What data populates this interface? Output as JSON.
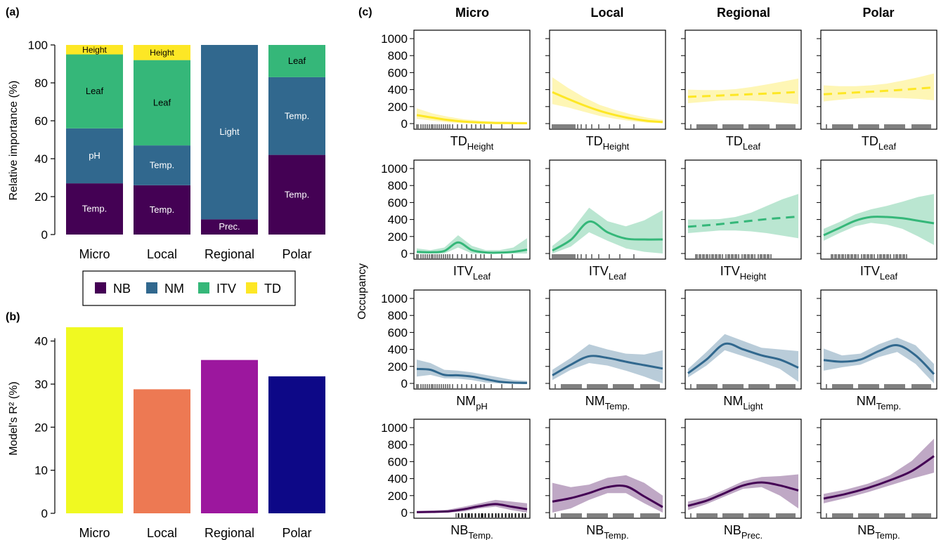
{
  "chart_data": [
    {
      "id": "a",
      "panel_label": "(a)",
      "type": "bar",
      "stacked": true,
      "ylabel": "Relative importance (%)",
      "ylim": [
        0,
        100
      ],
      "yticks": [
        0,
        20,
        40,
        60,
        80,
        100
      ],
      "categories": [
        "Micro",
        "Local",
        "Regional",
        "Polar"
      ],
      "colors": {
        "NB": "#440154",
        "NM": "#31688e",
        "ITV": "#35b779",
        "TD": "#fde725"
      },
      "segments": [
        [
          {
            "group": "NB",
            "value": 27,
            "label": "Temp."
          },
          {
            "group": "NM",
            "value": 29,
            "label": "pH"
          },
          {
            "group": "ITV",
            "value": 39,
            "label": "Leaf"
          },
          {
            "group": "TD",
            "value": 5,
            "label": "Height"
          }
        ],
        [
          {
            "group": "NB",
            "value": 26,
            "label": "Temp."
          },
          {
            "group": "NM",
            "value": 21,
            "label": "Temp."
          },
          {
            "group": "ITV",
            "value": 45,
            "label": "Leaf"
          },
          {
            "group": "TD",
            "value": 8,
            "label": "Height"
          }
        ],
        [
          {
            "group": "NB",
            "value": 8,
            "label": "Prec."
          },
          {
            "group": "NM",
            "value": 92,
            "label": "Light"
          }
        ],
        [
          {
            "group": "NB",
            "value": 42,
            "label": "Temp."
          },
          {
            "group": "NM",
            "value": 41,
            "label": "Temp."
          },
          {
            "group": "ITV",
            "value": 17,
            "label": "Leaf"
          }
        ]
      ],
      "legend": [
        "NB",
        "NM",
        "ITV",
        "TD"
      ]
    },
    {
      "id": "b",
      "panel_label": "(b)",
      "type": "bar",
      "ylabel": "Model's R² (%)",
      "ylim": [
        0,
        45
      ],
      "yticks": [
        0,
        10,
        20,
        30,
        40
      ],
      "categories": [
        "Micro",
        "Local",
        "Regional",
        "Polar"
      ],
      "values": [
        43.2,
        28.8,
        35.6,
        31.8
      ],
      "colors": [
        "#f0f921",
        "#ed7953",
        "#9c179e",
        "#0d0887"
      ]
    },
    {
      "id": "c",
      "panel_label": "(c)",
      "type": "line",
      "ylabel": "Occupancy",
      "ylim": [
        0,
        1000
      ],
      "yticks": [
        0,
        200,
        400,
        600,
        800,
        1000
      ],
      "columns": [
        "Micro",
        "Local",
        "Regional",
        "Polar"
      ],
      "panels": [
        {
          "row": 0,
          "col": 0,
          "main": "TD",
          "sub": "Height",
          "group": "TD",
          "dashed": false,
          "fit": [
            100,
            70,
            42,
            22,
            12,
            7,
            5,
            4
          ],
          "lo": [
            55,
            35,
            15,
            5,
            2,
            0,
            0,
            0
          ],
          "hi": [
            180,
            120,
            80,
            50,
            35,
            25,
            22,
            20
          ],
          "rug": "micro"
        },
        {
          "row": 0,
          "col": 1,
          "main": "TD",
          "sub": "Height",
          "group": "TD",
          "dashed": false,
          "fit": [
            370,
            290,
            215,
            150,
            100,
            60,
            32,
            18
          ],
          "lo": [
            230,
            190,
            140,
            90,
            55,
            30,
            10,
            5
          ],
          "hi": [
            545,
            420,
            310,
            220,
            160,
            110,
            70,
            45
          ],
          "rug": "left"
        },
        {
          "row": 0,
          "col": 2,
          "main": "TD",
          "sub": "Leaf",
          "group": "TD",
          "dashed": true,
          "fit": [
            315,
            322,
            330,
            338,
            346,
            354,
            362,
            372
          ],
          "lo": [
            240,
            255,
            270,
            275,
            270,
            260,
            245,
            230
          ],
          "hi": [
            400,
            395,
            395,
            405,
            430,
            460,
            495,
            530
          ],
          "rug": "wide"
        },
        {
          "row": 0,
          "col": 3,
          "main": "TD",
          "sub": "Leaf",
          "group": "TD",
          "dashed": true,
          "fit": [
            345,
            355,
            365,
            375,
            386,
            398,
            412,
            425
          ],
          "lo": [
            260,
            280,
            295,
            305,
            305,
            300,
            290,
            275
          ],
          "hi": [
            450,
            440,
            440,
            450,
            470,
            505,
            545,
            590
          ],
          "rug": "wide"
        },
        {
          "row": 1,
          "col": 0,
          "main": "ITV",
          "sub": "Leaf",
          "group": "ITV",
          "dashed": false,
          "fit": [
            20,
            15,
            30,
            130,
            40,
            12,
            10,
            20,
            45
          ],
          "lo": [
            0,
            0,
            0,
            70,
            0,
            0,
            0,
            0,
            0
          ],
          "hi": [
            60,
            40,
            70,
            215,
            90,
            40,
            40,
            70,
            180
          ],
          "rug": "micro"
        },
        {
          "row": 1,
          "col": 1,
          "main": "ITV",
          "sub": "Leaf",
          "group": "ITV",
          "dashed": false,
          "fit": [
            35,
            160,
            375,
            250,
            175,
            165,
            165
          ],
          "lo": [
            0,
            80,
            250,
            150,
            60,
            20,
            0
          ],
          "hi": [
            90,
            260,
            540,
            380,
            320,
            390,
            510
          ],
          "rug": "left"
        },
        {
          "row": 1,
          "col": 2,
          "main": "ITV",
          "sub": "Height",
          "group": "ITV",
          "dashed": true,
          "fit": [
            315,
            330,
            345,
            365,
            385,
            405,
            420,
            435
          ],
          "lo": [
            240,
            255,
            270,
            270,
            260,
            240,
            210,
            180
          ],
          "hi": [
            400,
            400,
            405,
            430,
            480,
            560,
            640,
            700
          ],
          "rug": "leftmid"
        },
        {
          "row": 1,
          "col": 3,
          "main": "ITV",
          "sub": "Leaf",
          "group": "ITV",
          "dashed": false,
          "fit": [
            215,
            300,
            385,
            430,
            430,
            415,
            385,
            355
          ],
          "lo": [
            150,
            240,
            320,
            360,
            340,
            290,
            200,
            100
          ],
          "hi": [
            290,
            370,
            460,
            520,
            560,
            610,
            665,
            700
          ],
          "rug": "leftmid"
        },
        {
          "row": 2,
          "col": 0,
          "main": "NM",
          "sub": "pH",
          "group": "NM",
          "dashed": false,
          "fit": [
            170,
            160,
            100,
            95,
            80,
            50,
            20,
            8,
            5
          ],
          "lo": [
            80,
            100,
            60,
            55,
            40,
            10,
            0,
            0,
            0
          ],
          "hi": [
            280,
            240,
            160,
            150,
            130,
            100,
            70,
            40,
            30
          ],
          "rug": "micro"
        },
        {
          "row": 2,
          "col": 1,
          "main": "NM",
          "sub": "Temp.",
          "group": "NM",
          "dashed": false,
          "fit": [
            95,
            220,
            320,
            300,
            255,
            215,
            175
          ],
          "lo": [
            40,
            160,
            240,
            210,
            150,
            80,
            0
          ],
          "hi": [
            160,
            300,
            460,
            400,
            350,
            340,
            390
          ],
          "rug": "wide"
        },
        {
          "row": 2,
          "col": 2,
          "main": "NM",
          "sub": "Light",
          "group": "NM",
          "dashed": false,
          "fit": [
            120,
            280,
            465,
            400,
            330,
            280,
            185
          ],
          "lo": [
            70,
            210,
            390,
            320,
            250,
            170,
            20
          ],
          "hi": [
            170,
            370,
            580,
            500,
            420,
            400,
            380
          ],
          "rug": "wide"
        },
        {
          "row": 2,
          "col": 3,
          "main": "NM",
          "sub": "Temp.",
          "group": "NM",
          "dashed": false,
          "fit": [
            275,
            255,
            280,
            380,
            450,
            330,
            110
          ],
          "lo": [
            150,
            190,
            220,
            310,
            370,
            230,
            0
          ],
          "hi": [
            410,
            330,
            350,
            460,
            540,
            450,
            230
          ],
          "rug": "wide"
        },
        {
          "row": 3,
          "col": 0,
          "main": "NB",
          "sub": "Temp.",
          "group": "NB",
          "dashed": false,
          "fit": [
            5,
            8,
            15,
            40,
            75,
            100,
            70,
            40
          ],
          "lo": [
            0,
            0,
            0,
            15,
            50,
            70,
            30,
            0
          ],
          "hi": [
            20,
            25,
            35,
            70,
            110,
            150,
            130,
            110
          ],
          "rug": "right"
        },
        {
          "row": 3,
          "col": 1,
          "main": "NB",
          "sub": "Temp.",
          "group": "NB",
          "dashed": false,
          "fit": [
            130,
            170,
            230,
            300,
            310,
            190,
            65
          ],
          "lo": [
            0,
            50,
            150,
            230,
            230,
            110,
            0
          ],
          "hi": [
            350,
            300,
            330,
            410,
            440,
            350,
            200
          ],
          "rug": "wide"
        },
        {
          "row": 3,
          "col": 2,
          "main": "NB",
          "sub": "Prec.",
          "group": "NB",
          "dashed": false,
          "fit": [
            80,
            140,
            230,
            320,
            355,
            320,
            260
          ],
          "lo": [
            30,
            100,
            190,
            280,
            300,
            200,
            50
          ],
          "hi": [
            130,
            180,
            270,
            370,
            420,
            430,
            450
          ],
          "rug": "wide"
        },
        {
          "row": 3,
          "col": 3,
          "main": "NB",
          "sub": "Temp.",
          "group": "NB",
          "dashed": false,
          "fit": [
            165,
            220,
            290,
            380,
            490,
            665
          ],
          "lo": [
            110,
            170,
            240,
            320,
            400,
            470
          ],
          "hi": [
            220,
            270,
            340,
            440,
            610,
            870
          ],
          "rug": "wide"
        }
      ]
    }
  ]
}
